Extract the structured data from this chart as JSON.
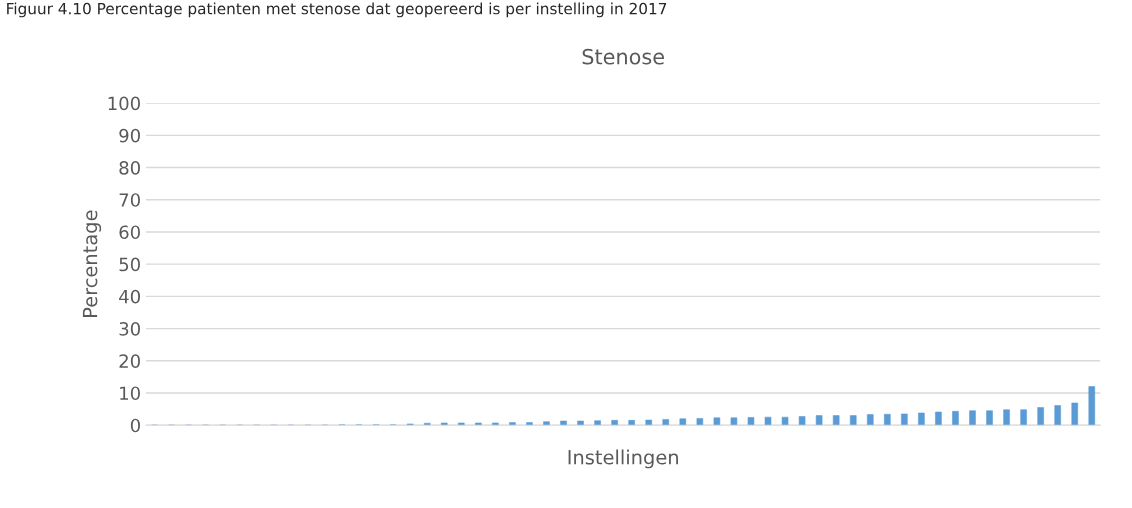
{
  "chart_data": {
    "type": "bar",
    "title": "Stenose",
    "xlabel": "Instellingen",
    "ylabel": "Percentage",
    "annotations": [
      "Figuur 4.10 Percentage patienten met stenose dat geopereerd is per instelling in 2017"
    ],
    "categories": [
      null,
      null,
      null,
      null,
      null,
      null,
      null,
      null,
      null,
      null,
      null,
      null,
      null,
      null,
      null,
      null,
      null,
      null,
      null,
      null,
      null,
      null,
      null,
      null,
      null,
      null,
      null,
      null,
      null,
      null,
      null,
      null,
      null,
      null,
      null,
      null,
      null,
      null,
      null,
      null,
      null,
      null,
      null,
      null,
      null,
      null,
      null,
      null,
      null,
      null,
      null,
      null,
      null,
      null,
      null,
      null
    ],
    "values": [
      0,
      0,
      0,
      0,
      0,
      0,
      0,
      0,
      0,
      0,
      0,
      0.1,
      0.1,
      0.1,
      0.1,
      0.4,
      0.6,
      0.7,
      0.7,
      0.7,
      0.7,
      0.8,
      0.8,
      1.1,
      1.3,
      1.3,
      1.4,
      1.5,
      1.5,
      1.6,
      1.8,
      2.0,
      2.1,
      2.3,
      2.3,
      2.4,
      2.5,
      2.5,
      2.7,
      3.0,
      3.0,
      3.0,
      3.3,
      3.4,
      3.5,
      3.8,
      4.1,
      4.3,
      4.5,
      4.5,
      4.8,
      4.8,
      5.5,
      6.1,
      6.9,
      12.0
    ],
    "color": "#5b9bd5",
    "ylim": [
      0,
      100
    ],
    "yticks": [
      0,
      10,
      20,
      30,
      40,
      50,
      60,
      70,
      80,
      90,
      100
    ],
    "grid": "y",
    "legend": false
  }
}
